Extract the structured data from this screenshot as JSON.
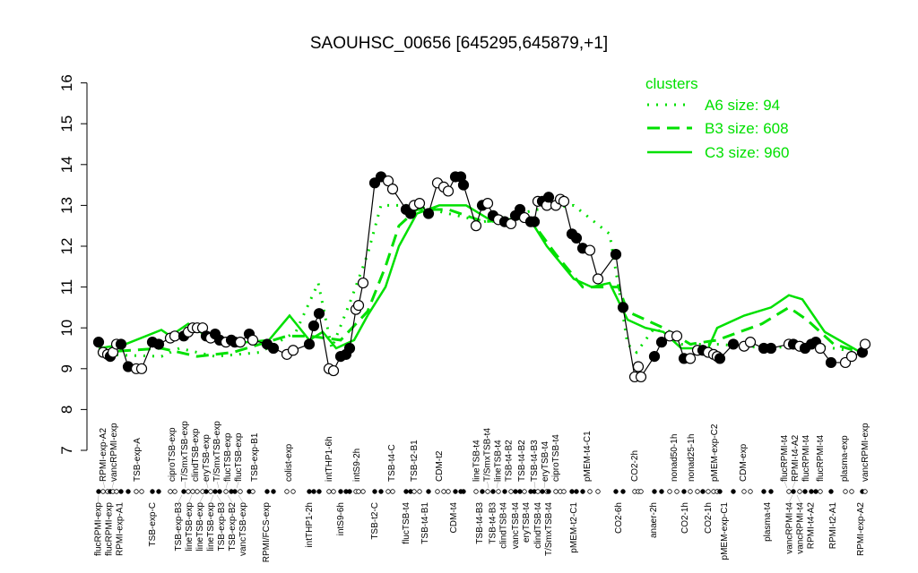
{
  "chart_data": {
    "type": "line",
    "title": "SAOUHSC_00656 [645295,645879,+1]",
    "xlabel": "",
    "ylabel": "",
    "ylim": [
      7,
      16
    ],
    "xlim": [
      0,
      172
    ],
    "yticks": [
      "7",
      "8",
      "9",
      "10",
      "11",
      "12",
      "13",
      "14",
      "15",
      "16"
    ],
    "grid": false,
    "colors": {
      "clusters": "#00e000",
      "profile": "#000000"
    },
    "legend": {
      "title": "clusters",
      "placement": "top-right",
      "entries": [
        {
          "label": "A6 size: 94",
          "style": "dotted"
        },
        {
          "label": "B3 size: 608",
          "style": "dashed"
        },
        {
          "label": "C3 size: 960",
          "style": "solid"
        }
      ]
    },
    "top_labels": [
      {
        "x": 1.8,
        "text": "RPMI-exp-A2"
      },
      {
        "x": 3.4,
        "text": "vancRPMI-exp"
      },
      {
        "x": 9,
        "text": "TSB-exp-A"
      },
      {
        "x": 16.8,
        "text": "ciproTSB-exp"
      },
      {
        "x": 19.8,
        "text": "T/SmxTSB-exp"
      },
      {
        "x": 22,
        "text": "clindTSB-exp"
      },
      {
        "x": 24.8,
        "text": "eryTSB-exp"
      },
      {
        "x": 27.2,
        "text": "T/SmxTSB-exp"
      },
      {
        "x": 28.8,
        "text": "flucTSB-exp"
      },
      {
        "x": 31.2,
        "text": "flucTSB-exp"
      },
      {
        "x": 35.2,
        "text": "TSB-exp-B1"
      },
      {
        "x": 42.8,
        "text": "colist-exp"
      },
      {
        "x": 51.8,
        "text": "intTHP1-6h"
      },
      {
        "x": 58,
        "text": "intS9-2h"
      },
      {
        "x": 65.8,
        "text": "TSB-t4-C"
      },
      {
        "x": 70.8,
        "text": "TSB-t2-B1"
      },
      {
        "x": 76.4,
        "text": "CDM-t2"
      },
      {
        "x": 84.8,
        "text": "lineTSB-t4"
      },
      {
        "x": 87.4,
        "text": "T/SmxTSB-t4"
      },
      {
        "x": 89.2,
        "text": "lineTSB-t4"
      },
      {
        "x": 91.8,
        "text": "TSB-t4-B2"
      },
      {
        "x": 94.8,
        "text": "TSB-t4-B2"
      },
      {
        "x": 97.8,
        "text": "TSB-t4-B3"
      },
      {
        "x": 99.8,
        "text": "eryTSB-t4"
      },
      {
        "x": 102.4,
        "text": "ciproTSB-t4"
      },
      {
        "x": 109.4,
        "text": "pMEM-t4-C1"
      },
      {
        "x": 120,
        "text": "CO2-2h"
      },
      {
        "x": 128.8,
        "text": "nonad50-1h"
      },
      {
        "x": 132.6,
        "text": "nonad25-1h"
      },
      {
        "x": 137.8,
        "text": "pMEM-exp-C2"
      },
      {
        "x": 144.2,
        "text": "CDM-exp"
      },
      {
        "x": 154,
        "text": "flucRPMI-t4"
      },
      {
        "x": 155.2,
        "text": "RPMI-t4-A2"
      },
      {
        "x": 158.2,
        "text": "flucRPMI-t4"
      },
      {
        "x": 161.4,
        "text": "flucRPMI-t4"
      },
      {
        "x": 166.8,
        "text": "plasma-exp"
      },
      {
        "x": 171.4,
        "text": "vancRPMI-exp"
      }
    ],
    "bottom_labels": [
      {
        "x": 0.4,
        "text": "flucRPMI-exp"
      },
      {
        "x": 2.6,
        "text": "flucRPMI-exp"
      },
      {
        "x": 5,
        "text": "RPMI-exp-A1"
      },
      {
        "x": 12.4,
        "text": "TSB-exp-C"
      },
      {
        "x": 19,
        "text": "TSB-exp-B3"
      },
      {
        "x": 21.2,
        "text": "lineTSB-exp"
      },
      {
        "x": 23.8,
        "text": "lineTSB-exp"
      },
      {
        "x": 26,
        "text": "lineTSB-exp"
      },
      {
        "x": 26.8,
        "text": "TSB-exp-B3"
      },
      {
        "x": 29.2,
        "text": "TSB-exp-B2"
      },
      {
        "x": 31.6,
        "text": "vancTSB-exp"
      },
      {
        "x": 37.8,
        "text": "RPMI/FCS-exp"
      },
      {
        "x": 47.4,
        "text": "intTHP1-2h"
      },
      {
        "x": 54.4,
        "text": "intS9-6h"
      },
      {
        "x": 62,
        "text": "TSB-t2-C"
      },
      {
        "x": 69,
        "text": "flucTSB-t4"
      },
      {
        "x": 73.2,
        "text": "TSB-t4-B1"
      },
      {
        "x": 79.6,
        "text": "CDM-t4"
      },
      {
        "x": 85.4,
        "text": "TSB-t4-B3"
      },
      {
        "x": 88.4,
        "text": "TSB-t4-B3"
      },
      {
        "x": 90.6,
        "text": "clindTSB-t4"
      },
      {
        "x": 93.4,
        "text": "vancTSB-t4"
      },
      {
        "x": 95.8,
        "text": "eryTSB-t4"
      },
      {
        "x": 98.4,
        "text": "clindTSB-t4"
      },
      {
        "x": 100.8,
        "text": "T/SmxTSB-t4"
      },
      {
        "x": 106.4,
        "text": "pMEM-t2-C1"
      },
      {
        "x": 116.4,
        "text": "CO2-6h"
      },
      {
        "x": 124.2,
        "text": "anaer-2h"
      },
      {
        "x": 131.2,
        "text": "CO2-1h"
      },
      {
        "x": 136.4,
        "text": "CO2-1h"
      },
      {
        "x": 140,
        "text": "pMEM-exp-C1"
      },
      {
        "x": 149.6,
        "text": "plasma-t4"
      },
      {
        "x": 155.2,
        "text": "vancRPMI-t4"
      },
      {
        "x": 156.2,
        "text": "vancRPMI-t4"
      },
      {
        "x": 159.2,
        "text": "RPMI-t4-A2"
      },
      {
        "x": 164.2,
        "text": "RPMI-t2-A1"
      },
      {
        "x": 170.4,
        "text": "RPMI-exp-A2"
      }
    ],
    "profile": [
      [
        0.4,
        9.65,
        1
      ],
      [
        1.4,
        9.4,
        0
      ],
      [
        2.4,
        9.35,
        0
      ],
      [
        3,
        9.3,
        1
      ],
      [
        3.6,
        9.4,
        0
      ],
      [
        4.4,
        9.6,
        0
      ],
      [
        5.4,
        9.6,
        1
      ],
      [
        7,
        9.05,
        1
      ],
      [
        8.8,
        9.0,
        0
      ],
      [
        10,
        9.0,
        0
      ],
      [
        12.4,
        9.65,
        1
      ],
      [
        13.8,
        9.6,
        1
      ],
      [
        16.4,
        9.75,
        0
      ],
      [
        17.4,
        9.8,
        0
      ],
      [
        19.4,
        9.8,
        1
      ],
      [
        20.4,
        9.9,
        0
      ],
      [
        21.4,
        10.0,
        0
      ],
      [
        22.4,
        10.0,
        0
      ],
      [
        23.6,
        10.0,
        0
      ],
      [
        24.4,
        9.8,
        1
      ],
      [
        25.4,
        9.75,
        0
      ],
      [
        26.4,
        9.85,
        1
      ],
      [
        27.4,
        9.7,
        1
      ],
      [
        28.8,
        9.65,
        0
      ],
      [
        30,
        9.7,
        1
      ],
      [
        30.8,
        9.65,
        1
      ],
      [
        32,
        9.65,
        0
      ],
      [
        34,
        9.85,
        1
      ],
      [
        34.8,
        9.7,
        0
      ],
      [
        38,
        9.6,
        1
      ],
      [
        39.4,
        9.5,
        1
      ],
      [
        42.4,
        9.35,
        0
      ],
      [
        43.8,
        9.45,
        0
      ],
      [
        47.4,
        9.6,
        1
      ],
      [
        48.4,
        10.05,
        1
      ],
      [
        49.6,
        10.35,
        1
      ],
      [
        51.8,
        9.0,
        0
      ],
      [
        52.8,
        8.95,
        0
      ],
      [
        54.4,
        9.3,
        1
      ],
      [
        55.6,
        9.35,
        1
      ],
      [
        56.4,
        9.5,
        1
      ],
      [
        57.8,
        10.45,
        0
      ],
      [
        58.4,
        10.55,
        0
      ],
      [
        59.4,
        11.1,
        0
      ],
      [
        62,
        13.55,
        1
      ],
      [
        63.4,
        13.7,
        1
      ],
      [
        65,
        13.6,
        0
      ],
      [
        66,
        13.4,
        0
      ],
      [
        69,
        12.9,
        1
      ],
      [
        70,
        12.8,
        1
      ],
      [
        70.8,
        13.0,
        0
      ],
      [
        72,
        13.05,
        0
      ],
      [
        74,
        12.8,
        1
      ],
      [
        76,
        13.55,
        0
      ],
      [
        77.4,
        13.45,
        0
      ],
      [
        78.4,
        13.35,
        0
      ],
      [
        80,
        13.7,
        1
      ],
      [
        81.2,
        13.7,
        1
      ],
      [
        81.8,
        13.5,
        1
      ],
      [
        84.6,
        12.5,
        0
      ],
      [
        86,
        13.0,
        1
      ],
      [
        87.2,
        13.05,
        0
      ],
      [
        88.4,
        12.75,
        1
      ],
      [
        89.6,
        12.65,
        0
      ],
      [
        91,
        12.6,
        1
      ],
      [
        92.4,
        12.55,
        0
      ],
      [
        93.4,
        12.75,
        1
      ],
      [
        94.4,
        12.9,
        1
      ],
      [
        95.4,
        12.7,
        0
      ],
      [
        96.8,
        12.6,
        1
      ],
      [
        97.6,
        12.6,
        1
      ],
      [
        98.4,
        13.1,
        0
      ],
      [
        99.4,
        13.1,
        1
      ],
      [
        100.4,
        13.0,
        0
      ],
      [
        100.8,
        13.2,
        1
      ],
      [
        102.4,
        13.0,
        0
      ],
      [
        103.4,
        13.15,
        0
      ],
      [
        104.2,
        13.1,
        0
      ],
      [
        106,
        12.3,
        1
      ],
      [
        107,
        12.2,
        1
      ],
      [
        108.4,
        11.95,
        1
      ],
      [
        110,
        11.9,
        0
      ],
      [
        111.8,
        11.2,
        0
      ],
      [
        115.8,
        11.8,
        1
      ],
      [
        117.4,
        10.5,
        1
      ],
      [
        120,
        8.8,
        0
      ],
      [
        120.8,
        9.05,
        0
      ],
      [
        121.4,
        8.8,
        0
      ],
      [
        124.4,
        9.3,
        1
      ],
      [
        126,
        9.65,
        1
      ],
      [
        127.8,
        9.8,
        0
      ],
      [
        129.4,
        9.8,
        0
      ],
      [
        131,
        9.25,
        1
      ],
      [
        132.4,
        9.25,
        0
      ],
      [
        134,
        9.45,
        0
      ],
      [
        135.2,
        9.45,
        1
      ],
      [
        136.4,
        9.4,
        0
      ],
      [
        137.6,
        9.35,
        0
      ],
      [
        138.4,
        9.3,
        0
      ],
      [
        139,
        9.25,
        1
      ],
      [
        142,
        9.6,
        1
      ],
      [
        144.4,
        9.55,
        0
      ],
      [
        145.8,
        9.65,
        0
      ],
      [
        148.8,
        9.5,
        1
      ],
      [
        150.4,
        9.5,
        1
      ],
      [
        154.4,
        9.6,
        0
      ],
      [
        155.4,
        9.6,
        1
      ],
      [
        156.8,
        9.55,
        0
      ],
      [
        158,
        9.5,
        1
      ],
      [
        159.4,
        9.6,
        1
      ],
      [
        160.4,
        9.65,
        1
      ],
      [
        161.4,
        9.5,
        0
      ],
      [
        163.8,
        9.15,
        1
      ],
      [
        167,
        9.15,
        0
      ],
      [
        168.4,
        9.3,
        0
      ],
      [
        170.8,
        9.4,
        1
      ],
      [
        171.4,
        9.6,
        0
      ]
    ],
    "series": [
      {
        "name": "A6 size: 94",
        "style": "dotted",
        "points": [
          [
            0.4,
            9.35
          ],
          [
            14.4,
            9.3
          ],
          [
            18.4,
            9.5
          ],
          [
            26.4,
            9.3
          ],
          [
            36.4,
            9.4
          ],
          [
            44.4,
            9.9
          ],
          [
            49.4,
            11.1
          ],
          [
            52.4,
            9.5
          ],
          [
            56.4,
            10.6
          ],
          [
            60.4,
            11.8
          ],
          [
            63.4,
            13.0
          ],
          [
            70.4,
            13.0
          ],
          [
            78.4,
            12.8
          ],
          [
            86.4,
            12.6
          ],
          [
            98.4,
            12.9
          ],
          [
            106.4,
            13.0
          ],
          [
            114.4,
            12.3
          ],
          [
            116.4,
            11.0
          ],
          [
            118.4,
            9.6
          ],
          [
            120.4,
            9.4
          ],
          [
            124.4,
            10.0
          ],
          [
            130.4,
            9.6
          ],
          [
            138.4,
            9.6
          ],
          [
            150.4,
            9.5
          ],
          [
            158.4,
            9.6
          ],
          [
            170.4,
            9.4
          ]
        ]
      },
      {
        "name": "B3 size: 608",
        "style": "dashed",
        "points": [
          [
            0.4,
            9.4
          ],
          [
            14.4,
            9.5
          ],
          [
            22.4,
            9.3
          ],
          [
            30.4,
            9.4
          ],
          [
            42.4,
            9.8
          ],
          [
            47.4,
            9.8
          ],
          [
            54.4,
            9.7
          ],
          [
            60.4,
            10.4
          ],
          [
            64.4,
            11.5
          ],
          [
            67.4,
            12.5
          ],
          [
            71.4,
            12.9
          ],
          [
            78.4,
            12.9
          ],
          [
            86.4,
            12.6
          ],
          [
            96.4,
            12.7
          ],
          [
            102.4,
            11.8
          ],
          [
            108.4,
            11.0
          ],
          [
            116.4,
            11.0
          ],
          [
            118.4,
            10.4
          ],
          [
            126.4,
            10.0
          ],
          [
            132.4,
            9.6
          ],
          [
            138.4,
            9.7
          ],
          [
            148.4,
            10.1
          ],
          [
            154.4,
            10.5
          ],
          [
            158.4,
            10.2
          ],
          [
            164.4,
            9.6
          ],
          [
            170.4,
            9.4
          ]
        ]
      },
      {
        "name": "C3 size: 960",
        "style": "solid",
        "points": [
          [
            0.4,
            9.5
          ],
          [
            6.4,
            9.6
          ],
          [
            14.4,
            9.95
          ],
          [
            16.4,
            9.8
          ],
          [
            20.4,
            10.1
          ],
          [
            24.4,
            9.8
          ],
          [
            28.4,
            9.6
          ],
          [
            38.4,
            9.7
          ],
          [
            43,
            10.3
          ],
          [
            47.4,
            9.7
          ],
          [
            50.4,
            9.9
          ],
          [
            53.4,
            9.5
          ],
          [
            57.4,
            9.7
          ],
          [
            60.4,
            10.3
          ],
          [
            64.4,
            11.0
          ],
          [
            67.4,
            12.0
          ],
          [
            71.4,
            12.8
          ],
          [
            76.4,
            13.0
          ],
          [
            82.4,
            13.0
          ],
          [
            88.4,
            12.6
          ],
          [
            96.4,
            12.7
          ],
          [
            100.4,
            12.0
          ],
          [
            106.4,
            11.2
          ],
          [
            110.4,
            11.0
          ],
          [
            114.4,
            11.1
          ],
          [
            118.4,
            10.2
          ],
          [
            122.4,
            10.0
          ],
          [
            126.4,
            9.9
          ],
          [
            130.4,
            9.5
          ],
          [
            136.4,
            9.5
          ],
          [
            138.4,
            10.0
          ],
          [
            144.4,
            10.3
          ],
          [
            150.4,
            10.5
          ],
          [
            154.4,
            10.8
          ],
          [
            157.4,
            10.7
          ],
          [
            162.4,
            9.9
          ],
          [
            170.4,
            9.4
          ]
        ]
      }
    ]
  }
}
